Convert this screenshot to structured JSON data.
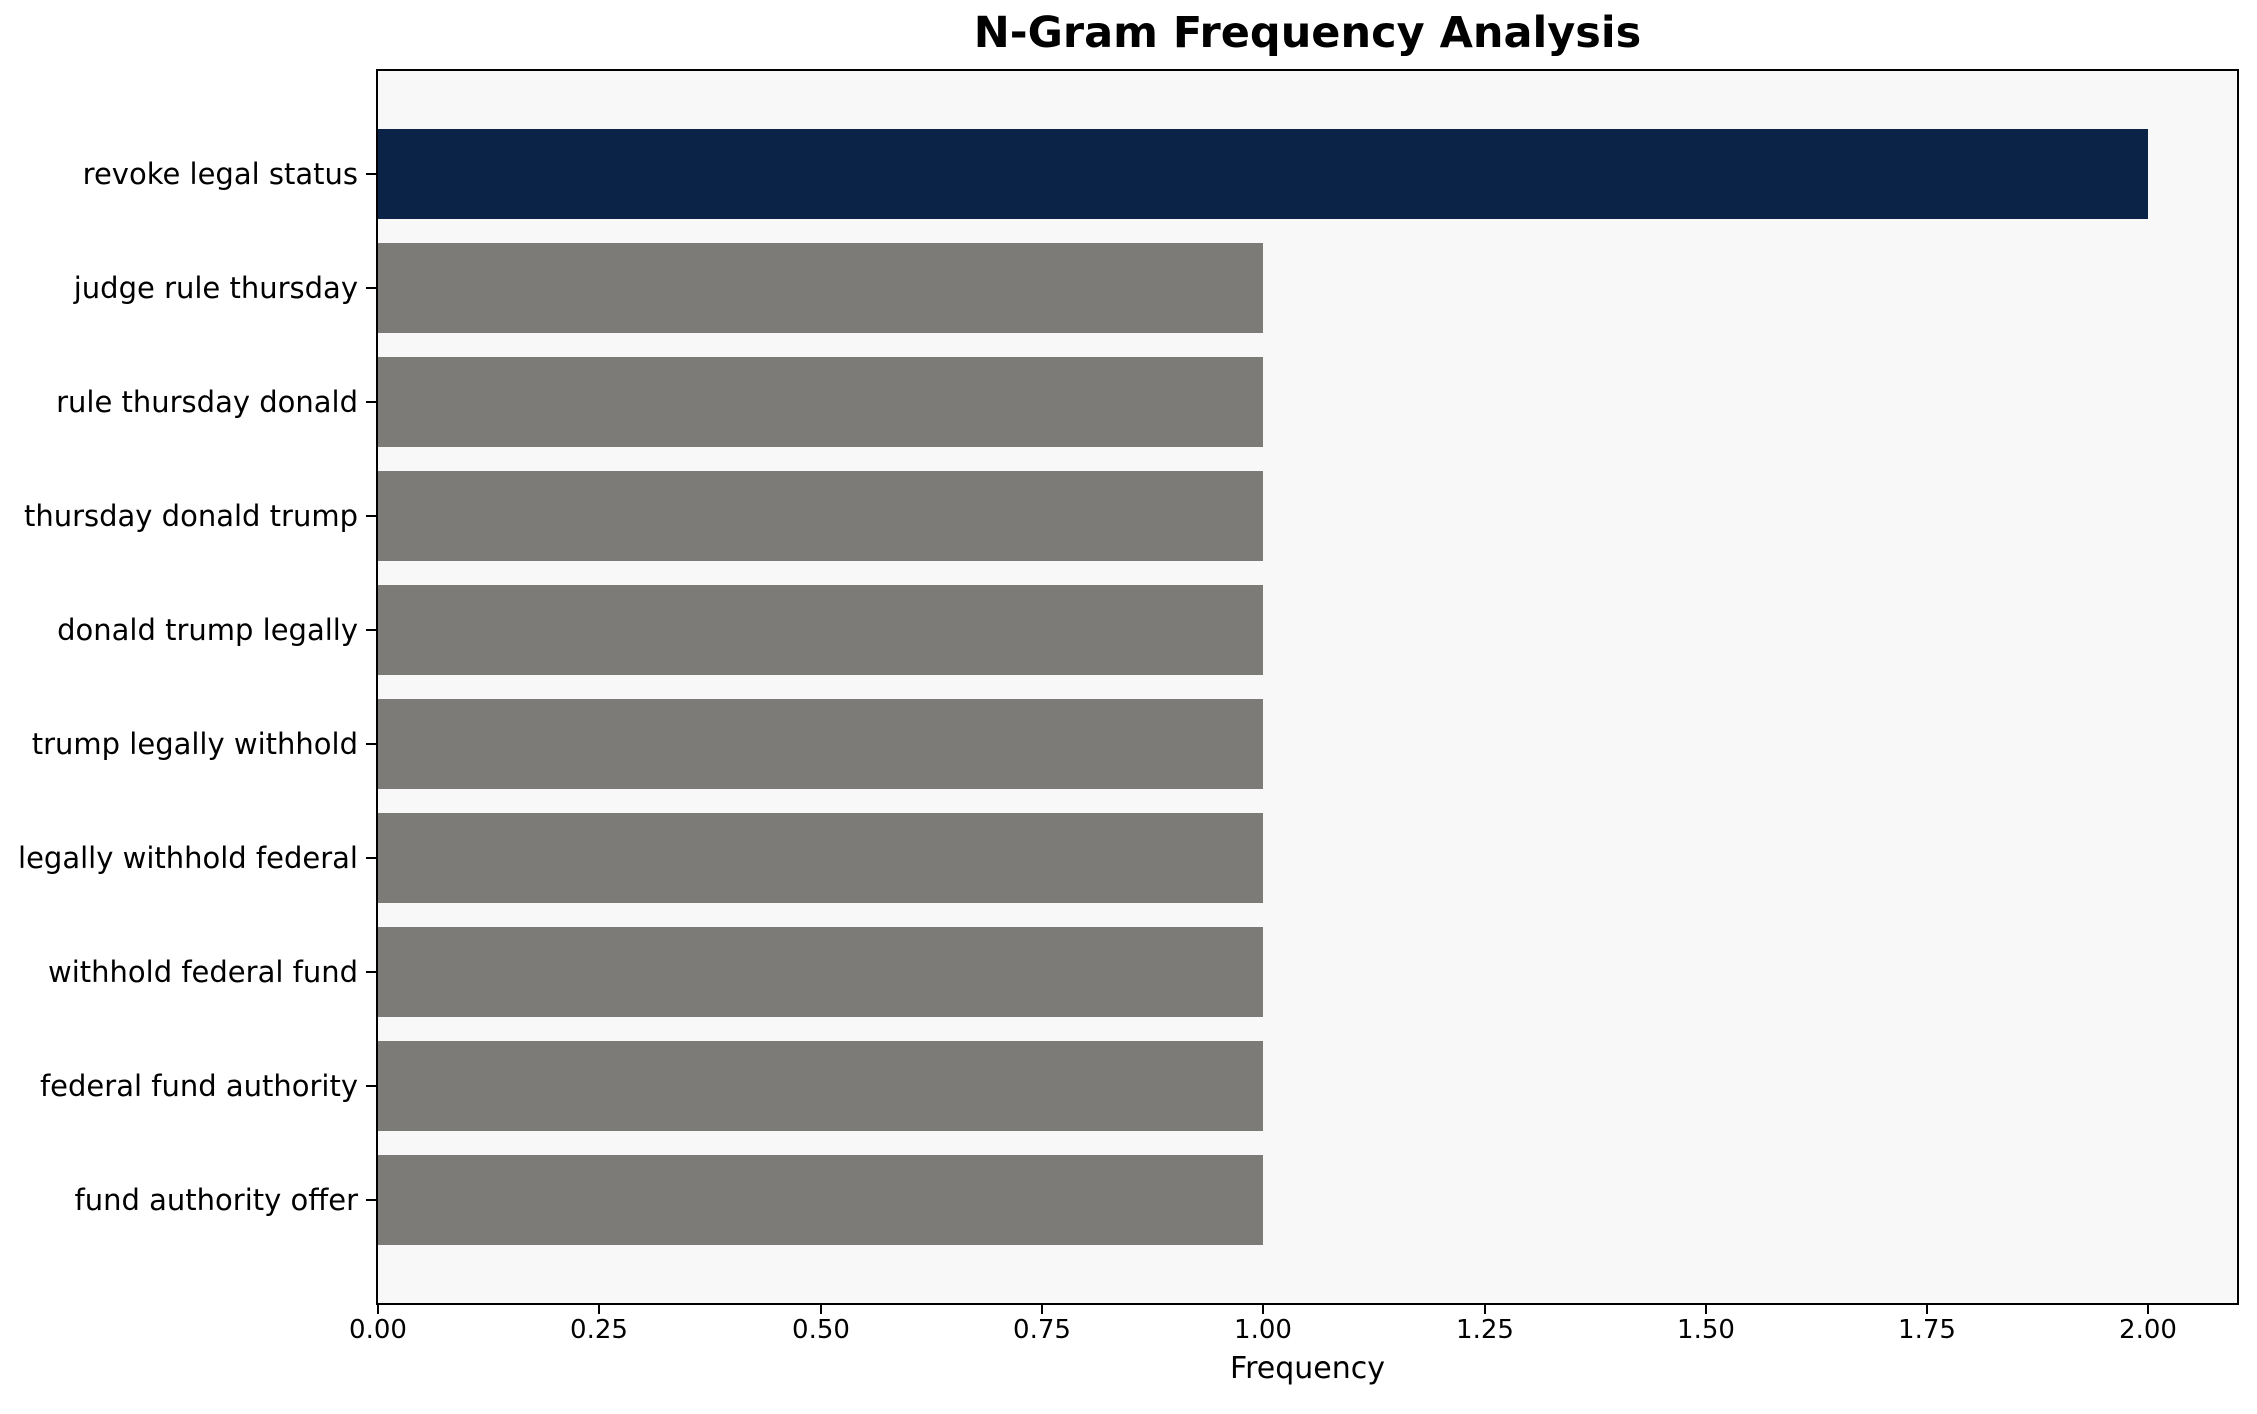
{
  "chart_data": {
    "type": "bar",
    "orientation": "horizontal",
    "title": "N-Gram Frequency Analysis",
    "xlabel": "Frequency",
    "ylabel": "",
    "categories": [
      "revoke legal status",
      "judge rule thursday",
      "rule thursday donald",
      "thursday donald trump",
      "donald trump legally",
      "trump legally withhold",
      "legally withhold federal",
      "withhold federal fund",
      "federal fund authority",
      "fund authority offer"
    ],
    "values": [
      2,
      1,
      1,
      1,
      1,
      1,
      1,
      1,
      1,
      1
    ],
    "bar_colors": [
      "#0a2346",
      "#7c7b78",
      "#7c7b78",
      "#7c7b78",
      "#7c7b78",
      "#7c7b78",
      "#7c7b78",
      "#7c7b78",
      "#7c7b78",
      "#7c7b78"
    ],
    "xlim": [
      0,
      2.1
    ],
    "xticks": {
      "values": [
        0,
        0.25,
        0.5,
        0.75,
        1.0,
        1.25,
        1.5,
        1.75,
        2.0
      ],
      "labels": [
        "0.00",
        "0.25",
        "0.50",
        "0.75",
        "1.00",
        "1.25",
        "1.50",
        "1.75",
        "2.00"
      ]
    },
    "grid": false,
    "legend": null,
    "colors": {
      "highlight_bar": "#0a2346",
      "default_bar": "#7c7b78",
      "plot_background": "#f8f8f8",
      "figure_background": "#ffffff",
      "spine": "#000000",
      "text": "#000000"
    }
  }
}
